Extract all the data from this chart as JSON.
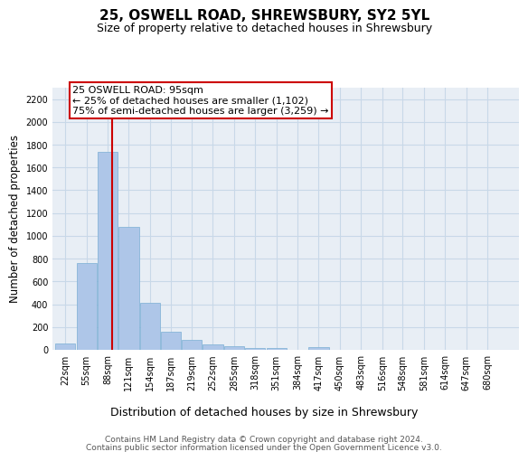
{
  "title": "25, OSWELL ROAD, SHREWSBURY, SY2 5YL",
  "subtitle": "Size of property relative to detached houses in Shrewsbury",
  "xlabel": "Distribution of detached houses by size in Shrewsbury",
  "ylabel": "Number of detached properties",
  "bar_color": "#aec6e8",
  "bar_edge_color": "#7aafd4",
  "grid_color": "#c8d8e8",
  "background_color": "#e8eef5",
  "annotation_text": "25 OSWELL ROAD: 95sqm\n← 25% of detached houses are smaller (1,102)\n75% of semi-detached houses are larger (3,259) →",
  "vline_x": 95,
  "vline_color": "#cc0000",
  "footer_line1": "Contains HM Land Registry data © Crown copyright and database right 2024.",
  "footer_line2": "Contains public sector information licensed under the Open Government Licence v3.0.",
  "categories": [
    "22sqm",
    "55sqm",
    "88sqm",
    "121sqm",
    "154sqm",
    "187sqm",
    "219sqm",
    "252sqm",
    "285sqm",
    "318sqm",
    "351sqm",
    "384sqm",
    "417sqm",
    "450sqm",
    "483sqm",
    "516sqm",
    "548sqm",
    "581sqm",
    "614sqm",
    "647sqm",
    "680sqm"
  ],
  "bin_edges": [
    22,
    55,
    88,
    121,
    154,
    187,
    219,
    252,
    285,
    318,
    351,
    384,
    417,
    450,
    483,
    516,
    548,
    581,
    614,
    647,
    680
  ],
  "bin_width": 33,
  "values": [
    55,
    760,
    1740,
    1075,
    415,
    155,
    85,
    45,
    30,
    18,
    18,
    0,
    22,
    0,
    0,
    0,
    0,
    0,
    0,
    0,
    0
  ],
  "ylim": [
    0,
    2300
  ],
  "yticks": [
    0,
    200,
    400,
    600,
    800,
    1000,
    1200,
    1400,
    1600,
    1800,
    2000,
    2200
  ],
  "title_fontsize": 11,
  "subtitle_fontsize": 9,
  "xlabel_fontsize": 9,
  "ylabel_fontsize": 8.5,
  "tick_fontsize": 7,
  "annotation_fontsize": 8,
  "footer_fontsize": 6.5
}
